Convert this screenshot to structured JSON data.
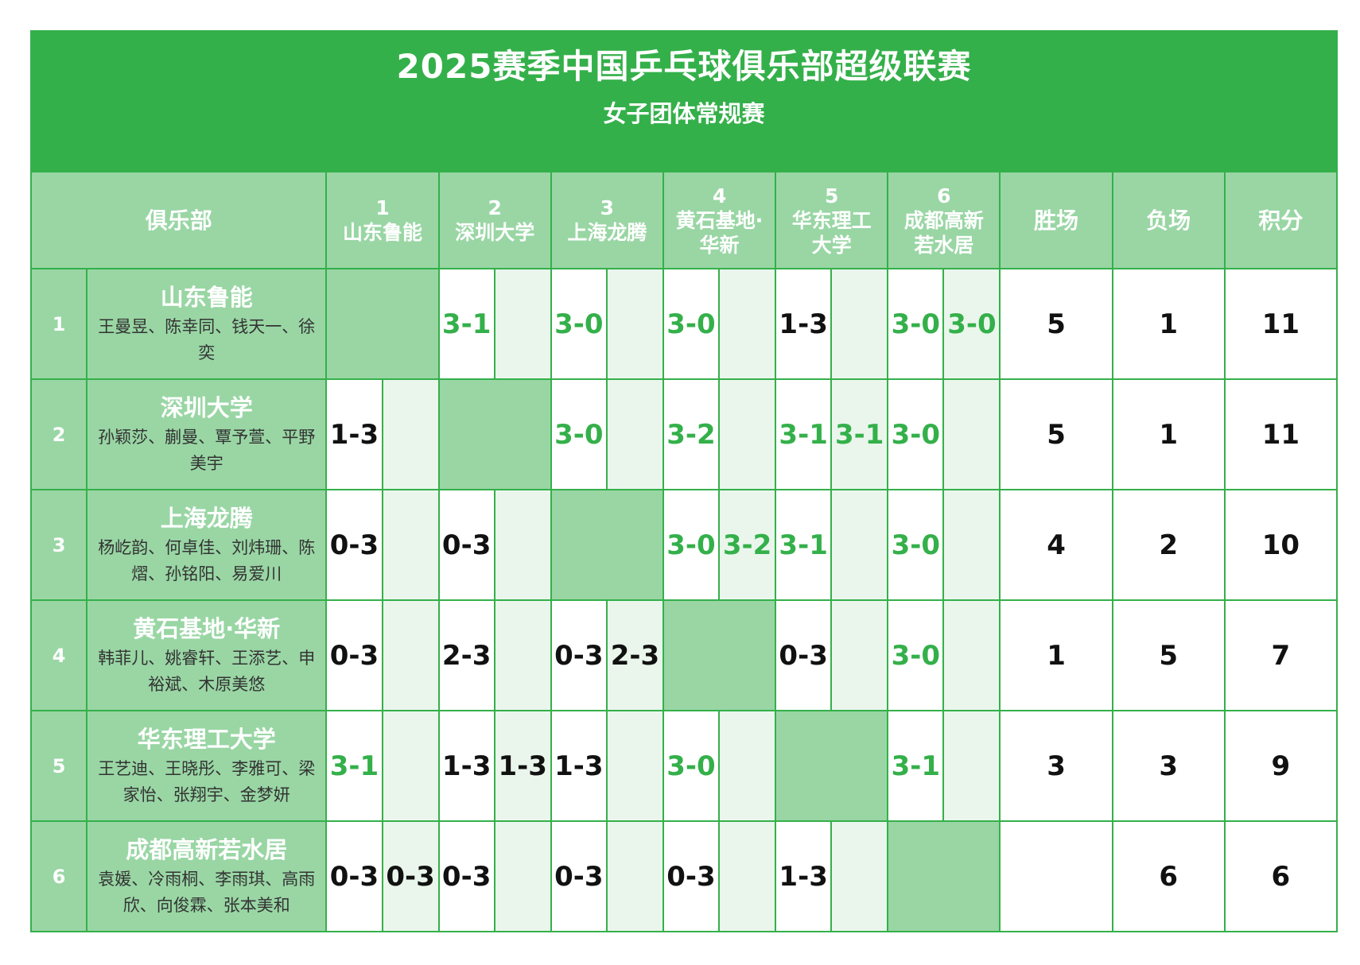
{
  "header": {
    "title": "2025赛季中国乒乓球俱乐部超级联赛",
    "subtitle": "女子团体常规赛"
  },
  "columns": {
    "club": "俱乐部",
    "opponents": [
      {
        "num": "1",
        "name": "山东鲁能"
      },
      {
        "num": "2",
        "name": "深圳大学"
      },
      {
        "num": "3",
        "name": "上海龙腾"
      },
      {
        "num": "4",
        "name": "黄石基地·华新"
      },
      {
        "num": "5",
        "name": "华东理工大学"
      },
      {
        "num": "6",
        "name": "成都高新若水居"
      }
    ],
    "wins": "胜场",
    "losses": "负场",
    "points": "积分"
  },
  "rows": [
    {
      "rank": "1",
      "name": "山东鲁能",
      "players": "王曼昱、陈幸同、钱天一、徐奕",
      "results": [
        [],
        [
          "3-1",
          ""
        ],
        [
          "3-0",
          ""
        ],
        [
          "3-0",
          ""
        ],
        [
          "1-3",
          ""
        ],
        [
          "3-0",
          "3-0"
        ]
      ],
      "wins": "5",
      "losses": "1",
      "points": "11"
    },
    {
      "rank": "2",
      "name": "深圳大学",
      "players": "孙颖莎、蒯曼、覃予萱、平野美宇",
      "results": [
        [
          "1-3",
          ""
        ],
        [],
        [
          "3-0",
          ""
        ],
        [
          "3-2",
          ""
        ],
        [
          "3-1",
          "3-1"
        ],
        [
          "3-0",
          ""
        ]
      ],
      "wins": "5",
      "losses": "1",
      "points": "11"
    },
    {
      "rank": "3",
      "name": "上海龙腾",
      "players": "杨屹韵、何卓佳、刘炜珊、陈熠、孙铭阳、易爱川",
      "results": [
        [
          "0-3",
          ""
        ],
        [
          "0-3",
          ""
        ],
        [],
        [
          "3-0",
          "3-2"
        ],
        [
          "3-1",
          ""
        ],
        [
          "3-0",
          ""
        ]
      ],
      "wins": "4",
      "losses": "2",
      "points": "10"
    },
    {
      "rank": "4",
      "name": "黄石基地·华新",
      "players": "韩菲儿、姚睿轩、王添艺、申裕斌、木原美悠",
      "results": [
        [
          "0-3",
          ""
        ],
        [
          "2-3",
          ""
        ],
        [
          "0-3",
          "2-3"
        ],
        [],
        [
          "0-3",
          ""
        ],
        [
          "3-0",
          ""
        ]
      ],
      "wins": "1",
      "losses": "5",
      "points": "7"
    },
    {
      "rank": "5",
      "name": "华东理工大学",
      "players": "王艺迪、王晓彤、李雅可、梁家怡、张翔宇、金梦妍",
      "results": [
        [
          "3-1",
          ""
        ],
        [
          "1-3",
          "1-3"
        ],
        [
          "1-3",
          ""
        ],
        [
          "3-0",
          ""
        ],
        [],
        [
          "3-1",
          ""
        ]
      ],
      "wins": "3",
      "losses": "3",
      "points": "9"
    },
    {
      "rank": "6",
      "name": "成都高新若水居",
      "players": "袁媛、冷雨桐、李雨琪、高雨欣、向俊霖、张本美和",
      "results": [
        [
          "0-3",
          "0-3"
        ],
        [
          "0-3",
          ""
        ],
        [
          "0-3",
          ""
        ],
        [
          "0-3",
          ""
        ],
        [
          "1-3",
          ""
        ],
        []
      ],
      "wins": "",
      "losses": "6",
      "points": "6"
    }
  ],
  "colors": {
    "brand_green": "#34b04a",
    "light_green": "#99d6a4",
    "pale_green": "#eaf6ec",
    "win_score": "#34b04a",
    "loss_score": "#111111"
  }
}
